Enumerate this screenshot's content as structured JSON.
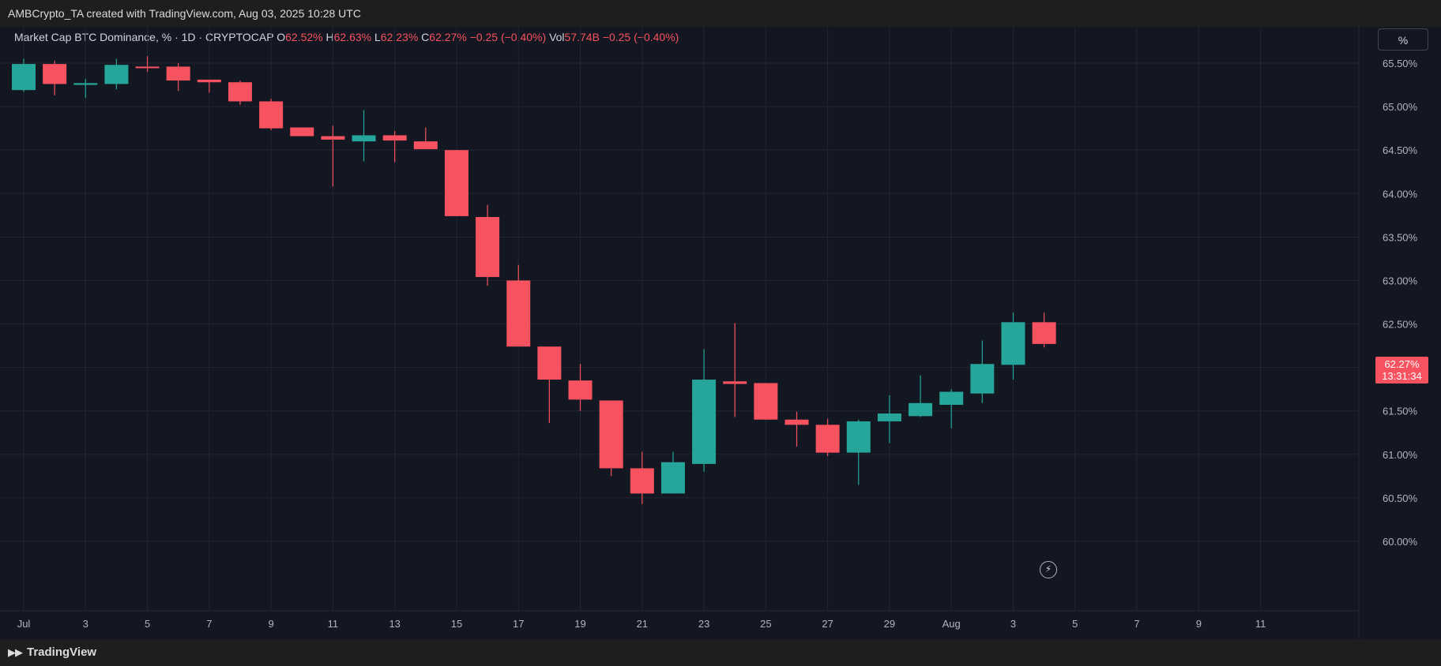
{
  "header": {
    "attribution": "AMBCrypto_TA created with TradingView.com, Aug 03, 2025 10:28 UTC"
  },
  "legend": {
    "symbol": "Market Cap BTC Dominance, % · 1D · CRYPTOCAP",
    "o_label": "O",
    "o_value": "62.52%",
    "h_label": "H",
    "h_value": "62.63%",
    "l_label": "L",
    "l_value": "62.23%",
    "c_label": "C",
    "c_value": "62.27%",
    "change": "−0.25 (−0.40%)",
    "vol_label": "Vol",
    "vol_value": "57.74B",
    "vol_change": "−0.25 (−0.40%)"
  },
  "scale_button": "%",
  "last_price": {
    "value": "62.27%",
    "countdown": "13:31:34"
  },
  "footer": {
    "brand": "TradingView"
  },
  "colors": {
    "up": "#26a69a",
    "down": "#f7525f",
    "background": "#131722",
    "grid": "#232632"
  },
  "icons": {
    "realtime": "lightning-icon",
    "brand": "tradingview-logo-icon"
  },
  "chart_data": {
    "type": "candlestick",
    "x_tick_labels": [
      "Jul",
      "3",
      "5",
      "7",
      "9",
      "11",
      "13",
      "15",
      "17",
      "19",
      "21",
      "23",
      "25",
      "27",
      "29",
      "Aug",
      "3",
      "5",
      "7",
      "9",
      "11"
    ],
    "y_tick_labels": [
      "65.50%",
      "65.00%",
      "64.50%",
      "64.00%",
      "63.50%",
      "63.00%",
      "62.50%",
      "62.00%",
      "61.50%",
      "61.00%",
      "60.50%",
      "60.00%"
    ],
    "ylim": [
      59.95,
      66.05
    ],
    "candles": [
      {
        "date": "Jul 1",
        "o": 65.19,
        "h": 65.55,
        "l": 65.17,
        "c": 65.49
      },
      {
        "date": "Jul 2",
        "o": 65.49,
        "h": 65.53,
        "l": 65.13,
        "c": 65.26
      },
      {
        "date": "Jul 3",
        "o": 65.25,
        "h": 65.32,
        "l": 65.1,
        "c": 65.27
      },
      {
        "date": "Jul 4",
        "o": 65.26,
        "h": 65.55,
        "l": 65.2,
        "c": 65.48
      },
      {
        "date": "Jul 5",
        "o": 65.46,
        "h": 65.58,
        "l": 65.4,
        "c": 65.45
      },
      {
        "date": "Jul 6",
        "o": 65.46,
        "h": 65.5,
        "l": 65.18,
        "c": 65.3
      },
      {
        "date": "Jul 7",
        "o": 65.31,
        "h": 65.31,
        "l": 65.16,
        "c": 65.28
      },
      {
        "date": "Jul 8",
        "o": 65.28,
        "h": 65.3,
        "l": 65.02,
        "c": 65.06
      },
      {
        "date": "Jul 9",
        "o": 65.06,
        "h": 65.09,
        "l": 64.73,
        "c": 64.75
      },
      {
        "date": "Jul 10",
        "o": 64.76,
        "h": 64.76,
        "l": 64.66,
        "c": 64.66
      },
      {
        "date": "Jul 11",
        "o": 64.66,
        "h": 64.78,
        "l": 64.08,
        "c": 64.62
      },
      {
        "date": "Jul 12",
        "o": 64.6,
        "h": 64.96,
        "l": 64.37,
        "c": 64.67
      },
      {
        "date": "Jul 13",
        "o": 64.67,
        "h": 64.72,
        "l": 64.36,
        "c": 64.61
      },
      {
        "date": "Jul 14",
        "o": 64.6,
        "h": 64.76,
        "l": 64.51,
        "c": 64.51
      },
      {
        "date": "Jul 15",
        "o": 64.5,
        "h": 64.5,
        "l": 63.74,
        "c": 63.74
      },
      {
        "date": "Jul 16",
        "o": 63.73,
        "h": 63.87,
        "l": 62.94,
        "c": 63.04
      },
      {
        "date": "Jul 17",
        "o": 63.0,
        "h": 63.18,
        "l": 62.24,
        "c": 62.24
      },
      {
        "date": "Jul 18",
        "o": 62.24,
        "h": 62.24,
        "l": 61.36,
        "c": 61.86
      },
      {
        "date": "Jul 19",
        "o": 61.85,
        "h": 62.04,
        "l": 61.5,
        "c": 61.63
      },
      {
        "date": "Jul 20",
        "o": 61.62,
        "h": 61.62,
        "l": 60.75,
        "c": 60.84
      },
      {
        "date": "Jul 21",
        "o": 60.84,
        "h": 61.03,
        "l": 60.43,
        "c": 60.55
      },
      {
        "date": "Jul 22",
        "o": 60.55,
        "h": 61.03,
        "l": 60.55,
        "c": 60.91
      },
      {
        "date": "Jul 23",
        "o": 60.89,
        "h": 62.21,
        "l": 60.8,
        "c": 61.86
      },
      {
        "date": "Jul 24",
        "o": 61.84,
        "h": 62.51,
        "l": 61.43,
        "c": 61.81
      },
      {
        "date": "Jul 25",
        "o": 61.82,
        "h": 61.82,
        "l": 61.4,
        "c": 61.4
      },
      {
        "date": "Jul 26",
        "o": 61.4,
        "h": 61.49,
        "l": 61.09,
        "c": 61.34
      },
      {
        "date": "Jul 27",
        "o": 61.34,
        "h": 61.41,
        "l": 60.98,
        "c": 61.02
      },
      {
        "date": "Jul 28",
        "o": 61.02,
        "h": 61.4,
        "l": 60.65,
        "c": 61.38
      },
      {
        "date": "Jul 29",
        "o": 61.38,
        "h": 61.68,
        "l": 61.13,
        "c": 61.47
      },
      {
        "date": "Jul 30",
        "o": 61.44,
        "h": 61.91,
        "l": 61.43,
        "c": 61.59
      },
      {
        "date": "Jul 31",
        "o": 61.57,
        "h": 61.75,
        "l": 61.3,
        "c": 61.72
      },
      {
        "date": "Aug 1",
        "o": 61.7,
        "h": 62.31,
        "l": 61.59,
        "c": 62.04
      },
      {
        "date": "Aug 2",
        "o": 62.03,
        "h": 62.63,
        "l": 61.86,
        "c": 62.52
      },
      {
        "date": "Aug 3",
        "o": 62.52,
        "h": 62.63,
        "l": 62.23,
        "c": 62.27
      }
    ]
  }
}
